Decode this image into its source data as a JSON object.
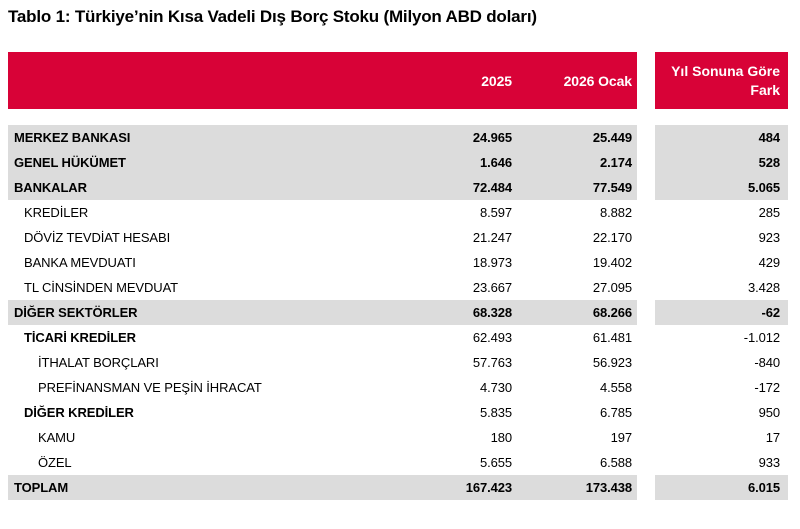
{
  "title": "Tablo 1: Türkiye’nin Kısa Vadeli Dış Borç Stoku (Milyon ABD doları)",
  "colors": {
    "header_red": "#D80237",
    "row_gray": "#DCDCDC",
    "header_text": "#FFFFFF",
    "body_text": "#000000"
  },
  "table": {
    "columns": [
      "2025",
      "2026 Ocak"
    ],
    "diff_column": "Yıl Sonuna Göre Fark",
    "rows": [
      {
        "label": "MERKEZ BANKASI",
        "v2025": "24.965",
        "v2026": "25.449",
        "diff": "484",
        "bg": "gray",
        "label_bold": true,
        "num_bold": true,
        "indent": 0
      },
      {
        "label": "GENEL HÜKÜMET",
        "v2025": "1.646",
        "v2026": "2.174",
        "diff": "528",
        "bg": "gray",
        "label_bold": true,
        "num_bold": true,
        "indent": 0
      },
      {
        "label": "BANKALAR",
        "v2025": "72.484",
        "v2026": "77.549",
        "diff": "5.065",
        "bg": "gray",
        "label_bold": true,
        "num_bold": true,
        "indent": 0
      },
      {
        "label": "KREDİLER",
        "v2025": "8.597",
        "v2026": "8.882",
        "diff": "285",
        "bg": "white",
        "label_bold": false,
        "num_bold": false,
        "indent": 1
      },
      {
        "label": "DÖVİZ TEVDİAT HESABI",
        "v2025": "21.247",
        "v2026": "22.170",
        "diff": "923",
        "bg": "white",
        "label_bold": false,
        "num_bold": false,
        "indent": 1
      },
      {
        "label": "BANKA MEVDUATI",
        "v2025": "18.973",
        "v2026": "19.402",
        "diff": "429",
        "bg": "white",
        "label_bold": false,
        "num_bold": false,
        "indent": 1
      },
      {
        "label": "TL CİNSİNDEN MEVDUAT",
        "v2025": "23.667",
        "v2026": "27.095",
        "diff": "3.428",
        "bg": "white",
        "label_bold": false,
        "num_bold": false,
        "indent": 1
      },
      {
        "label": "DİĞER SEKTÖRLER",
        "v2025": "68.328",
        "v2026": "68.266",
        "diff": "-62",
        "bg": "gray",
        "label_bold": true,
        "num_bold": true,
        "indent": 0
      },
      {
        "label": "TİCARİ KREDİLER",
        "v2025": "62.493",
        "v2026": "61.481",
        "diff": "-1.012",
        "bg": "white",
        "label_bold": true,
        "num_bold": false,
        "indent": 1
      },
      {
        "label": "İTHALAT BORÇLARI",
        "v2025": "57.763",
        "v2026": "56.923",
        "diff": "-840",
        "bg": "white",
        "label_bold": false,
        "num_bold": false,
        "indent": 2
      },
      {
        "label": "PREFİNANSMAN VE PEŞİN İHRACAT",
        "v2025": "4.730",
        "v2026": "4.558",
        "diff": "-172",
        "bg": "white",
        "label_bold": false,
        "num_bold": false,
        "indent": 2
      },
      {
        "label": "DİĞER KREDİLER",
        "v2025": "5.835",
        "v2026": "6.785",
        "diff": "950",
        "bg": "white",
        "label_bold": true,
        "num_bold": false,
        "indent": 1
      },
      {
        "label": "KAMU",
        "v2025": "180",
        "v2026": "197",
        "diff": "17",
        "bg": "white",
        "label_bold": false,
        "num_bold": false,
        "indent": 2
      },
      {
        "label": "ÖZEL",
        "v2025": "5.655",
        "v2026": "6.588",
        "diff": "933",
        "bg": "white",
        "label_bold": false,
        "num_bold": false,
        "indent": 2
      },
      {
        "label": "TOPLAM",
        "v2025": "167.423",
        "v2026": "173.438",
        "diff": "6.015",
        "bg": "gray",
        "label_bold": true,
        "num_bold": true,
        "indent": 0
      }
    ]
  }
}
